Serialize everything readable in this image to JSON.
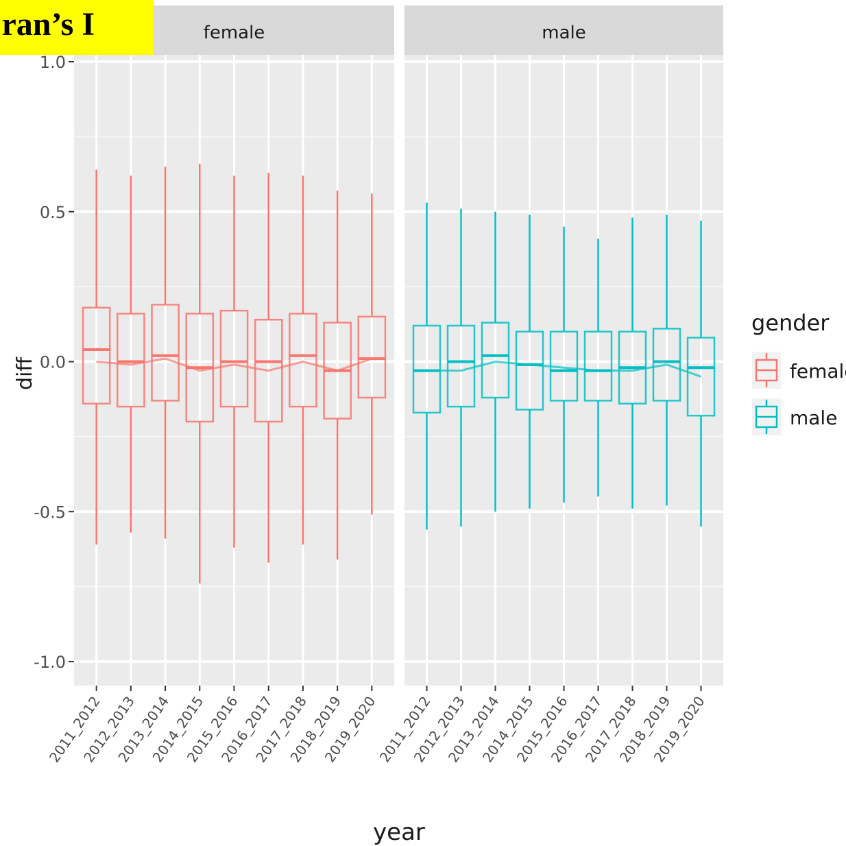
{
  "overlay_label": "ran’s I",
  "chart_data": {
    "type": "boxplot",
    "ylabel": "diff",
    "xlabel": "year",
    "ylim": [
      -1.0,
      1.0
    ],
    "yticks": [
      -1.0,
      -0.5,
      0.0,
      0.5,
      1.0
    ],
    "ytick_labels": [
      "-1.0",
      "-0.5",
      "0.0",
      "0.5",
      "1.0"
    ],
    "categories": [
      "2011_2012",
      "2012_2013",
      "2013_2014",
      "2014_2015",
      "2015_2016",
      "2016_2017",
      "2017_2018",
      "2018_2019",
      "2019_2020"
    ],
    "legend": {
      "title": "gender",
      "position": "right",
      "entries": [
        "female",
        "male"
      ]
    },
    "grid": true,
    "panels": [
      {
        "facet": "female",
        "color": "#F8766D",
        "boxes": [
          {
            "min": -0.61,
            "q1": -0.14,
            "median": 0.04,
            "q3": 0.18,
            "max": 0.64
          },
          {
            "min": -0.57,
            "q1": -0.15,
            "median": 0.0,
            "q3": 0.16,
            "max": 0.62
          },
          {
            "min": -0.59,
            "q1": -0.13,
            "median": 0.02,
            "q3": 0.19,
            "max": 0.65
          },
          {
            "min": -0.74,
            "q1": -0.2,
            "median": -0.02,
            "q3": 0.16,
            "max": 0.66
          },
          {
            "min": -0.62,
            "q1": -0.15,
            "median": 0.0,
            "q3": 0.17,
            "max": 0.62
          },
          {
            "min": -0.67,
            "q1": -0.2,
            "median": 0.0,
            "q3": 0.14,
            "max": 0.63
          },
          {
            "min": -0.61,
            "q1": -0.15,
            "median": 0.02,
            "q3": 0.16,
            "max": 0.62
          },
          {
            "min": -0.66,
            "q1": -0.19,
            "median": -0.03,
            "q3": 0.13,
            "max": 0.57
          },
          {
            "min": -0.51,
            "q1": -0.12,
            "median": 0.01,
            "q3": 0.15,
            "max": 0.56
          }
        ],
        "trend": [
          0.0,
          -0.01,
          0.01,
          -0.03,
          -0.01,
          -0.03,
          0.0,
          -0.03,
          0.01
        ]
      },
      {
        "facet": "male",
        "color": "#00BFC4",
        "boxes": [
          {
            "min": -0.56,
            "q1": -0.17,
            "median": -0.03,
            "q3": 0.12,
            "max": 0.53
          },
          {
            "min": -0.55,
            "q1": -0.15,
            "median": 0.0,
            "q3": 0.12,
            "max": 0.51
          },
          {
            "min": -0.5,
            "q1": -0.12,
            "median": 0.02,
            "q3": 0.13,
            "max": 0.5
          },
          {
            "min": -0.49,
            "q1": -0.16,
            "median": -0.01,
            "q3": 0.1,
            "max": 0.49
          },
          {
            "min": -0.47,
            "q1": -0.13,
            "median": -0.03,
            "q3": 0.1,
            "max": 0.45
          },
          {
            "min": -0.45,
            "q1": -0.13,
            "median": -0.03,
            "q3": 0.1,
            "max": 0.41
          },
          {
            "min": -0.49,
            "q1": -0.14,
            "median": -0.02,
            "q3": 0.1,
            "max": 0.48
          },
          {
            "min": -0.48,
            "q1": -0.13,
            "median": 0.0,
            "q3": 0.11,
            "max": 0.49
          },
          {
            "min": -0.55,
            "q1": -0.18,
            "median": -0.02,
            "q3": 0.08,
            "max": 0.47
          }
        ],
        "trend": [
          -0.03,
          -0.03,
          0.0,
          -0.01,
          -0.02,
          -0.03,
          -0.03,
          -0.01,
          -0.05
        ]
      }
    ]
  }
}
